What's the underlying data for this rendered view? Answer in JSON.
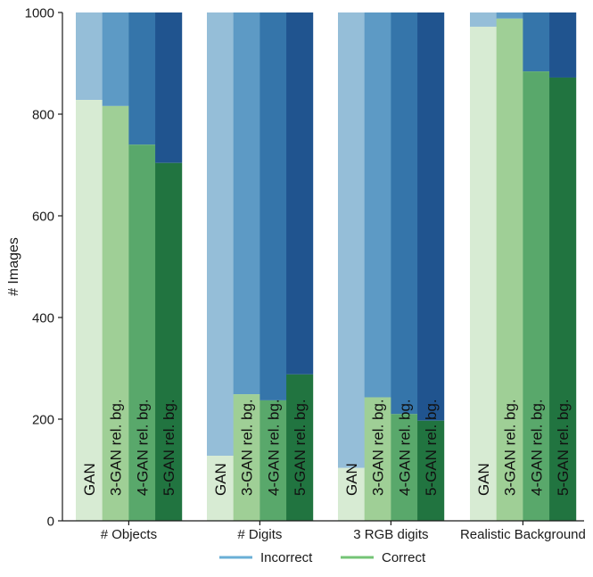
{
  "chart_data": {
    "type": "bar",
    "stacked": true,
    "title": "",
    "xlabel": "",
    "ylabel": "# Images",
    "ylim": [
      0,
      1000
    ],
    "yticks": [
      0,
      200,
      400,
      600,
      800,
      1000
    ],
    "groups": [
      "# Objects",
      "# Digits",
      "3 RGB digits",
      "Realistic Background"
    ],
    "bar_labels": [
      "GAN",
      "3-GAN rel. bg.",
      "4-GAN rel. bg.",
      "5-GAN rel. bg."
    ],
    "series": [
      {
        "name": "Correct",
        "values": [
          [
            828,
            816,
            740,
            704
          ],
          [
            128,
            249,
            237,
            288
          ],
          [
            104,
            243,
            210,
            197
          ],
          [
            972,
            988,
            884,
            872
          ]
        ]
      },
      {
        "name": "Incorrect",
        "values": [
          [
            172,
            184,
            260,
            296
          ],
          [
            872,
            751,
            763,
            712
          ],
          [
            896,
            757,
            790,
            803
          ],
          [
            28,
            12,
            116,
            128
          ]
        ]
      }
    ],
    "legend": [
      "Incorrect",
      "Correct"
    ],
    "legend_position": "bottom-center",
    "colors": {
      "correct": [
        "#d7ebd3",
        "#9fcf96",
        "#59a86b",
        "#217440"
      ],
      "incorrect": [
        "#95bed8",
        "#5d9ac5",
        "#3575aa",
        "#20548f"
      ],
      "legend_incorrect": "#6aafd6",
      "legend_correct": "#74c476"
    }
  }
}
